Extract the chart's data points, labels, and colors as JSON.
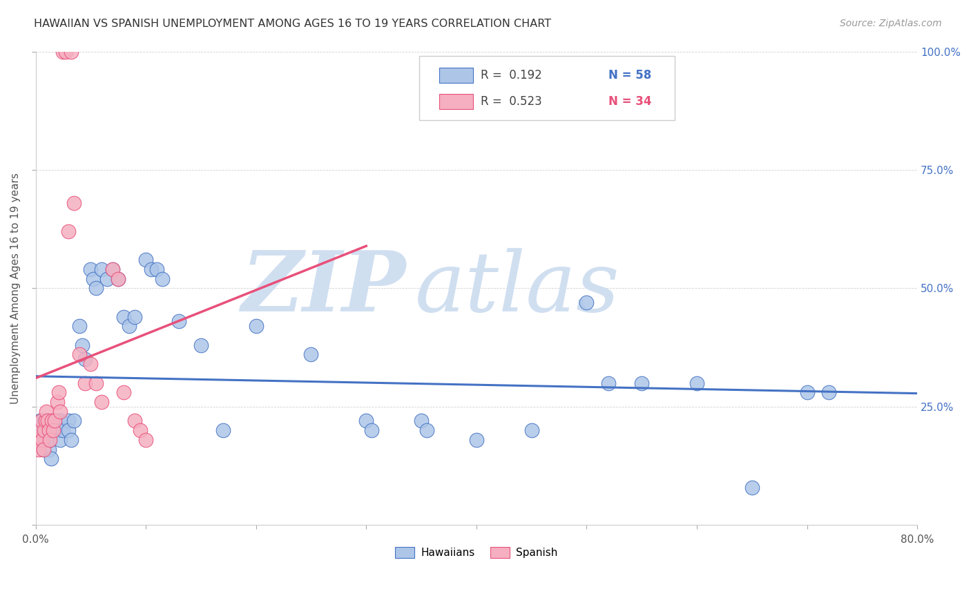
{
  "title": "HAWAIIAN VS SPANISH UNEMPLOYMENT AMONG AGES 16 TO 19 YEARS CORRELATION CHART",
  "source": "Source: ZipAtlas.com",
  "ylabel": "Unemployment Among Ages 16 to 19 years",
  "xlim": [
    0.0,
    0.8
  ],
  "ylim": [
    0.0,
    1.0
  ],
  "xticks": [
    0.0,
    0.1,
    0.2,
    0.3,
    0.4,
    0.5,
    0.6,
    0.7,
    0.8
  ],
  "xticklabels": [
    "0.0%",
    "",
    "",
    "",
    "",
    "",
    "",
    "",
    "80.0%"
  ],
  "yticks": [
    0.0,
    0.25,
    0.5,
    0.75,
    1.0
  ],
  "yticklabels": [
    "",
    "25.0%",
    "50.0%",
    "75.0%",
    "100.0%"
  ],
  "legend_r_hawaiian": "R =  0.192",
  "legend_n_hawaiian": "N = 58",
  "legend_r_spanish": "R =  0.523",
  "legend_n_spanish": "N = 34",
  "hawaiian_color": "#adc6e8",
  "spanish_color": "#f5afc0",
  "hawaiian_line_color": "#4472C4",
  "spanish_line_color": "#E8507A",
  "watermark_color": "#d0dff0",
  "hawaiian_x": [
    0.002,
    0.003,
    0.004,
    0.005,
    0.006,
    0.007,
    0.008,
    0.01,
    0.01,
    0.012,
    0.013,
    0.014,
    0.015,
    0.016,
    0.02,
    0.02,
    0.022,
    0.023,
    0.025,
    0.03,
    0.03,
    0.032,
    0.035,
    0.04,
    0.042,
    0.045,
    0.05,
    0.052,
    0.055,
    0.06,
    0.065,
    0.07,
    0.075,
    0.08,
    0.085,
    0.09,
    0.1,
    0.105,
    0.11,
    0.115,
    0.13,
    0.15,
    0.17,
    0.2,
    0.25,
    0.3,
    0.305,
    0.35,
    0.355,
    0.4,
    0.45,
    0.5,
    0.52,
    0.55,
    0.6,
    0.65,
    0.7,
    0.72
  ],
  "hawaiian_y": [
    0.2,
    0.18,
    0.22,
    0.2,
    0.18,
    0.16,
    0.22,
    0.2,
    0.22,
    0.16,
    0.18,
    0.14,
    0.2,
    0.22,
    0.22,
    0.2,
    0.18,
    0.22,
    0.2,
    0.22,
    0.2,
    0.18,
    0.22,
    0.42,
    0.38,
    0.35,
    0.54,
    0.52,
    0.5,
    0.54,
    0.52,
    0.54,
    0.52,
    0.44,
    0.42,
    0.44,
    0.56,
    0.54,
    0.54,
    0.52,
    0.43,
    0.38,
    0.2,
    0.42,
    0.36,
    0.22,
    0.2,
    0.22,
    0.2,
    0.18,
    0.2,
    0.47,
    0.3,
    0.3,
    0.3,
    0.08,
    0.28,
    0.28
  ],
  "spanish_x": [
    0.002,
    0.003,
    0.004,
    0.005,
    0.006,
    0.007,
    0.008,
    0.009,
    0.01,
    0.011,
    0.012,
    0.013,
    0.015,
    0.016,
    0.017,
    0.02,
    0.021,
    0.022,
    0.025,
    0.027,
    0.03,
    0.032,
    0.035,
    0.04,
    0.045,
    0.05,
    0.055,
    0.06,
    0.07,
    0.075,
    0.08,
    0.09,
    0.095,
    0.1
  ],
  "spanish_y": [
    0.18,
    0.16,
    0.2,
    0.22,
    0.18,
    0.16,
    0.2,
    0.22,
    0.24,
    0.22,
    0.2,
    0.18,
    0.22,
    0.2,
    0.22,
    0.26,
    0.28,
    0.24,
    1.0,
    1.0,
    0.62,
    1.0,
    0.68,
    0.36,
    0.3,
    0.34,
    0.3,
    0.26,
    0.54,
    0.52,
    0.28,
    0.22,
    0.2,
    0.18
  ]
}
